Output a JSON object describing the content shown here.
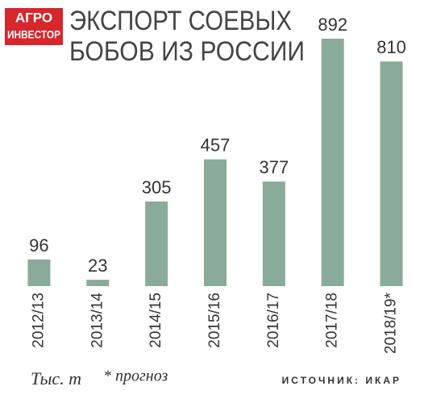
{
  "chart_data": {
    "type": "bar",
    "logo": [
      "АГРО",
      "ИНВЕСТОР"
    ],
    "title": [
      "ЭКСПОРТ СОЕВЫХ",
      "БОБОВ ИЗ РОССИИ"
    ],
    "categories": [
      "2012/13",
      "2013/14",
      "2014/15",
      "2015/16",
      "2016/17",
      "2017/18",
      "2018/19*"
    ],
    "values": [
      96,
      23,
      305,
      457,
      377,
      892,
      810
    ],
    "color": "#8aab99",
    "unit": "Тыс. т",
    "note": "* прогноз",
    "source": "ИСТОЧНИК: ИКАР"
  }
}
